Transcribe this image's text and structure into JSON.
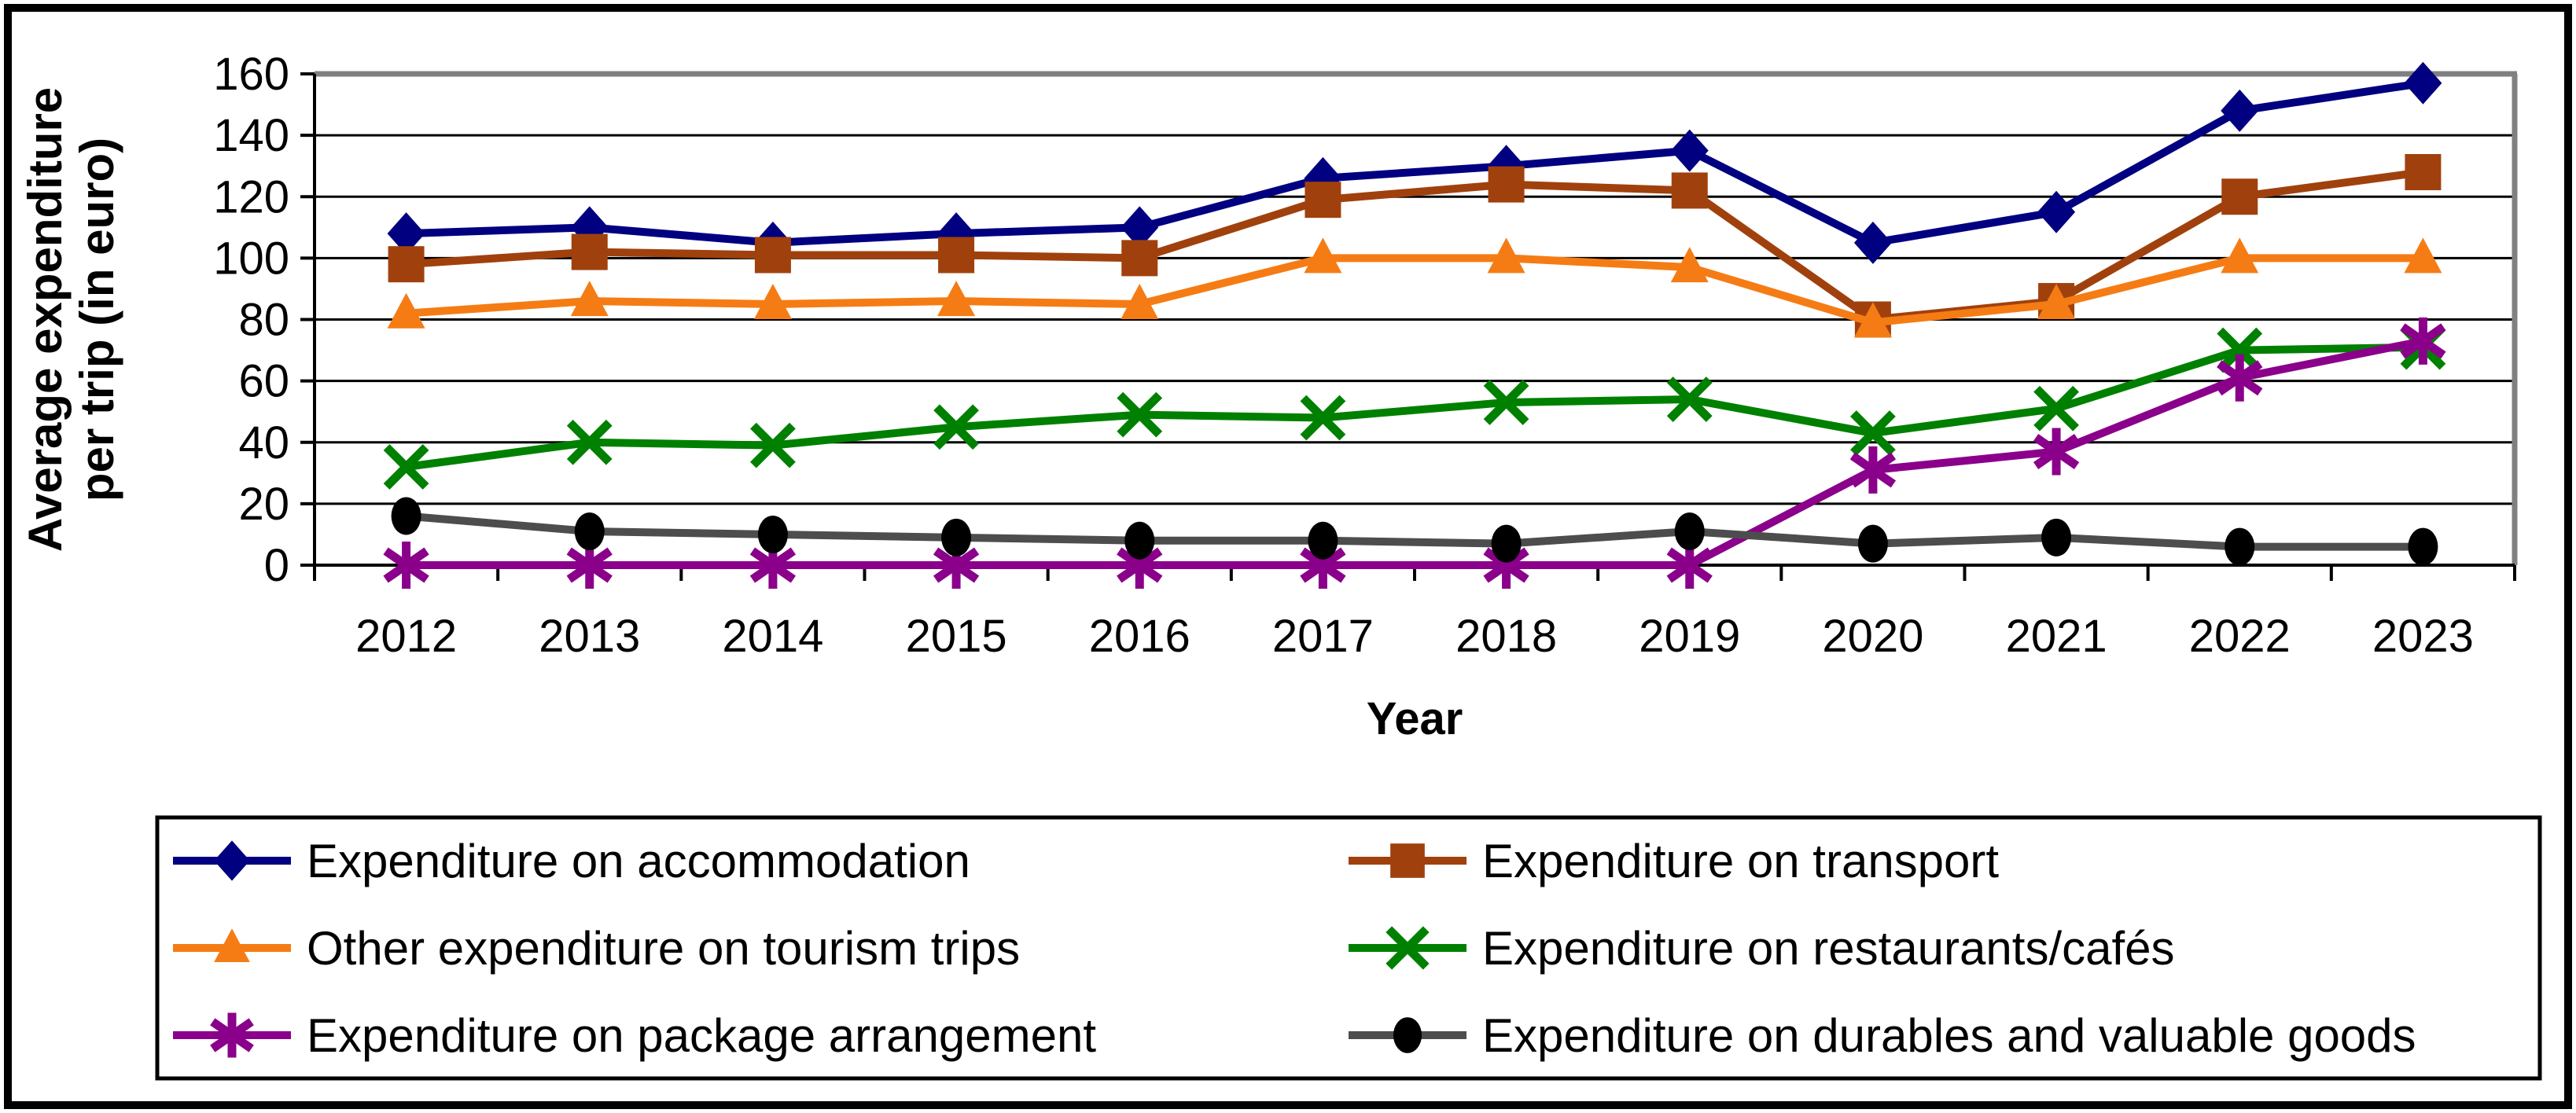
{
  "chart_data": {
    "type": "line",
    "title": "",
    "xlabel": "Year",
    "ylabel": "Average expenditure per trip (in euro)",
    "ylabel_lines": [
      "Average expenditure",
      "per trip (in euro)"
    ],
    "x_categories": [
      "2012",
      "2013",
      "2014",
      "2015",
      "2016",
      "2017",
      "2018",
      "2019",
      "2020",
      "2021",
      "2022",
      "2023"
    ],
    "y_ticks": [
      0,
      20,
      40,
      60,
      80,
      100,
      120,
      140,
      160
    ],
    "ylim": [
      0,
      160
    ],
    "grid": true,
    "legend_position": "bottom",
    "colors": {
      "plot_border_gray": "#808080",
      "axis_black": "#000000",
      "durables_line_gray": "#4D4D4D"
    },
    "series": [
      {
        "name": "Expenditure on accommodation",
        "marker": "diamond",
        "color": "#000080",
        "values": [
          108,
          110,
          105,
          108,
          110,
          126,
          130,
          135,
          105,
          115,
          148,
          157
        ]
      },
      {
        "name": "Expenditure on transport",
        "marker": "square",
        "color": "#A0410D",
        "values": [
          98,
          102,
          101,
          101,
          100,
          119,
          124,
          122,
          80,
          86,
          120,
          128
        ]
      },
      {
        "name": "Other expenditure on tourism trips",
        "marker": "triangle",
        "color": "#F57C14",
        "values": [
          82,
          86,
          85,
          86,
          85,
          100,
          100,
          97,
          79,
          85,
          100,
          100
        ]
      },
      {
        "name": "Expenditure on restaurants/cafés",
        "marker": "x",
        "color": "#008000",
        "values": [
          32,
          40,
          39,
          45,
          49,
          48,
          53,
          54,
          43,
          51,
          70,
          71
        ]
      },
      {
        "name": "Expenditure on package arrangement",
        "marker": "asterisk",
        "color": "#8B008B",
        "values": [
          0,
          0,
          0,
          0,
          0,
          0,
          0,
          0,
          31,
          37,
          61,
          73
        ]
      },
      {
        "name": "Expenditure on durables and valuable goods",
        "marker": "circle",
        "color": "#000000",
        "line_color": "#4D4D4D",
        "values": [
          16,
          11,
          10,
          9,
          8,
          8,
          7,
          11,
          7,
          9,
          6,
          6
        ]
      }
    ]
  }
}
